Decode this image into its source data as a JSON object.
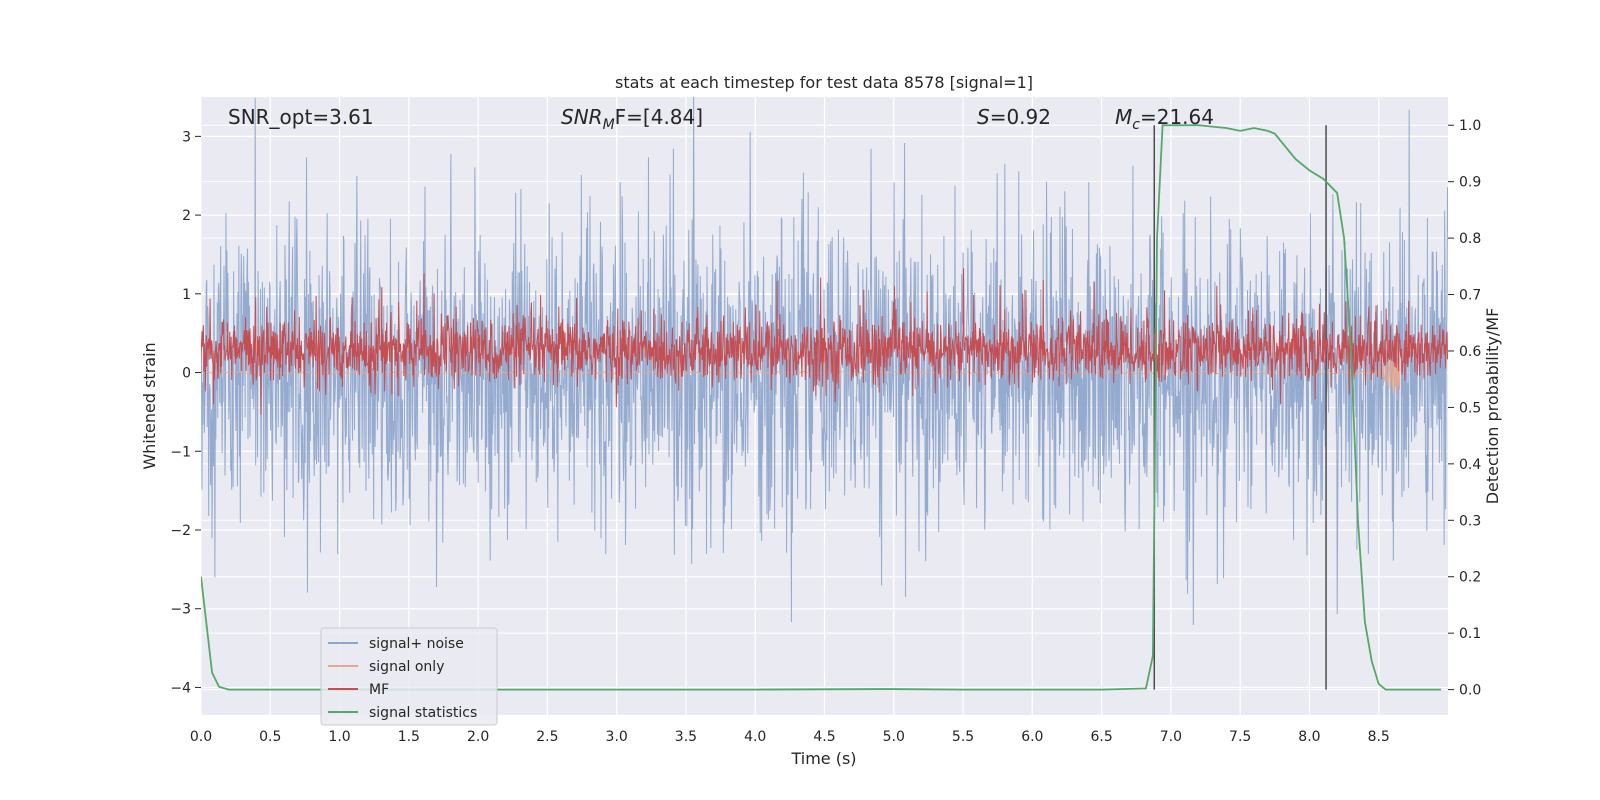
{
  "chart_data": {
    "type": "line",
    "title": "stats at each timestep for test data 8578 [signal=1]",
    "xlabel": "Time (s)",
    "ylabel": "Whitened strain",
    "y2label": "Detection probability/MF",
    "xlim": [
      0.0,
      9.0
    ],
    "ylim": [
      -4.35,
      3.5
    ],
    "y2lim": [
      -0.045,
      1.05
    ],
    "xticks": [
      "0.0",
      "0.5",
      "1.0",
      "1.5",
      "2.0",
      "2.5",
      "3.0",
      "3.5",
      "4.0",
      "4.5",
      "5.0",
      "5.5",
      "6.0",
      "6.5",
      "7.0",
      "7.5",
      "8.0",
      "8.5"
    ],
    "yticks": [
      "3",
      "2",
      "1",
      "0",
      "−1",
      "−2",
      "−3",
      "−4"
    ],
    "y2ticks": [
      "1.0",
      "0.9",
      "0.8",
      "0.7",
      "0.6",
      "0.5",
      "0.4",
      "0.3",
      "0.2",
      "0.1",
      "0.0"
    ],
    "grid": true,
    "legend_position": "lower-left",
    "annotations": {
      "snr_opt": "SNR_opt=3.61",
      "snr_mf_base": "SNR",
      "snr_mf_sub": "M",
      "snr_mf_rest": "F=[4.84]",
      "s_base": "S",
      "s_rest": "=0.92",
      "mc_base": "M",
      "mc_sub": "c",
      "mc_rest": "=21.64"
    },
    "vlines_x": [
      6.88,
      8.12
    ],
    "series": [
      {
        "name": "signal+ noise",
        "color": "#8fa6cc",
        "axis": "left",
        "kind": "noise",
        "sigma": 0.95,
        "x_end": 9.0
      },
      {
        "name": "signal only",
        "color": "#e8a88f",
        "axis": "left",
        "kind": "chirp",
        "merger_x": 8.65,
        "x_end": 8.65
      },
      {
        "name": "MF",
        "color": "#c44e52",
        "axis": "right",
        "kind": "noise",
        "center": 0.6,
        "spread": 0.03,
        "x_end": 9.0
      },
      {
        "name": "signal statistics",
        "color": "#55a868",
        "axis": "right",
        "kind": "points",
        "x": [
          0.0,
          0.08,
          0.13,
          0.2,
          0.5,
          1.0,
          2.0,
          3.0,
          4.0,
          4.95,
          5.5,
          6.0,
          6.5,
          6.82,
          6.87,
          6.9,
          6.94,
          7.0,
          7.2,
          7.4,
          7.5,
          7.6,
          7.7,
          7.75,
          7.8,
          7.9,
          8.0,
          8.1,
          8.2,
          8.25,
          8.3,
          8.35,
          8.4,
          8.45,
          8.5,
          8.55,
          8.6,
          8.7,
          8.8,
          8.95
        ],
        "y": [
          0.2,
          0.03,
          0.005,
          0.0,
          0.0,
          0.0,
          0.0,
          0.0,
          0.0,
          0.001,
          0.0,
          0.0,
          0.0,
          0.002,
          0.06,
          0.8,
          1.0,
          1.0,
          1.0,
          0.995,
          0.99,
          0.995,
          0.99,
          0.985,
          0.97,
          0.94,
          0.92,
          0.905,
          0.88,
          0.8,
          0.6,
          0.3,
          0.12,
          0.05,
          0.01,
          0.0,
          0.0,
          0.0,
          0.0,
          0.0
        ]
      }
    ]
  }
}
